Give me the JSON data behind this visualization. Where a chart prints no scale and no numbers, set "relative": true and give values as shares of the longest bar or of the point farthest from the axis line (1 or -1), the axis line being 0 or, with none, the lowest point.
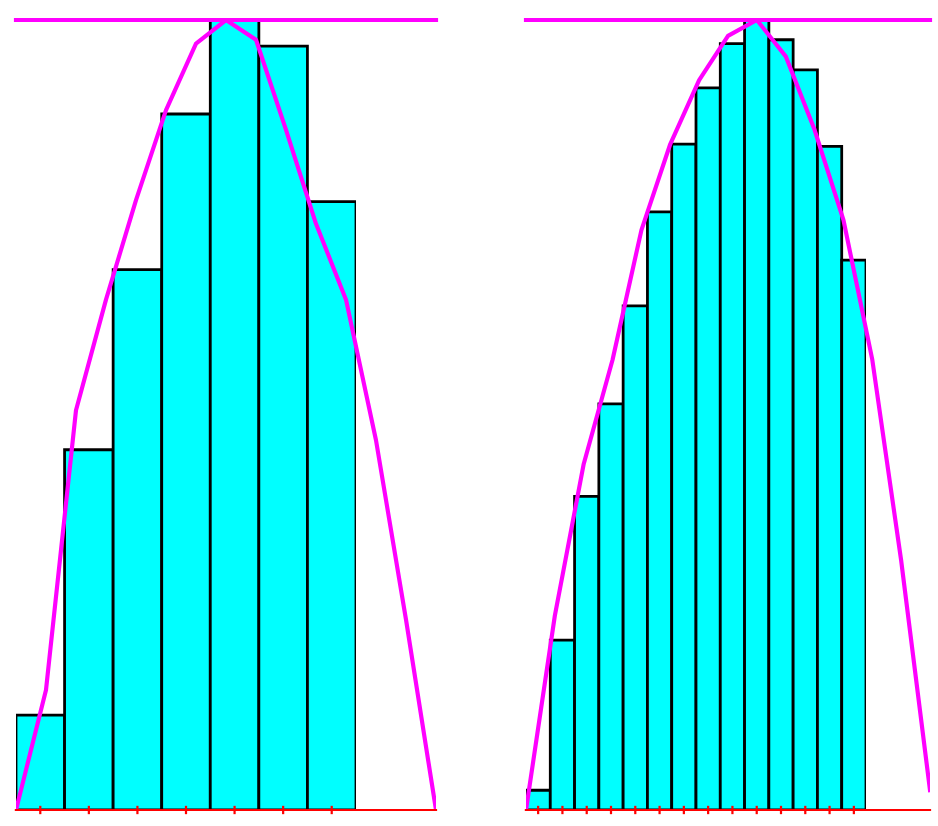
{
  "chart_data": [
    {
      "type": "bar",
      "relative": true,
      "categories": [
        null,
        null,
        null,
        null,
        null,
        null,
        null
      ],
      "color": "#00ffff",
      "values": [
        0.12,
        0.456,
        0.684,
        0.881,
        1.0,
        0.967,
        0.77
      ]
    },
    {
      "type": "line",
      "relative": true,
      "categories": [
        null,
        null,
        null,
        null,
        null,
        null,
        null,
        null,
        null,
        null,
        null,
        null,
        null,
        null,
        null
      ],
      "color": "#ff00ff",
      "values": [
        0,
        0.152,
        0.506,
        0.646,
        0.772,
        0.886,
        0.97,
        1.0,
        0.975,
        0.861,
        0.742,
        0.646,
        0.468,
        0.241,
        0
      ],
      "ref_lines": [
        {
          "axis": "y",
          "value": 1,
          "color": "#ff00ff"
        }
      ]
    },
    {
      "type": "bar",
      "relative": true,
      "categories": [
        null,
        null,
        null,
        null,
        null,
        null,
        null,
        null,
        null,
        null,
        null,
        null,
        null,
        null
      ],
      "color": "#00ffff",
      "values": [
        0.025,
        0.215,
        0.397,
        0.514,
        0.638,
        0.757,
        0.843,
        0.914,
        0.97,
        1.0,
        0.975,
        0.937,
        0.84,
        0.696
      ]
    },
    {
      "type": "line",
      "relative": true,
      "categories": [
        null,
        null,
        null,
        null,
        null,
        null,
        null,
        null,
        null,
        null,
        null,
        null,
        null,
        null,
        null
      ],
      "color": "#ff00ff",
      "values": [
        0,
        0.246,
        0.438,
        0.57,
        0.734,
        0.843,
        0.924,
        0.98,
        1.0,
        0.954,
        0.861,
        0.747,
        0.57,
        0.316,
        0.025
      ],
      "ref_lines": [
        {
          "axis": "y",
          "value": 1,
          "color": "#ff00ff"
        }
      ]
    }
  ]
}
